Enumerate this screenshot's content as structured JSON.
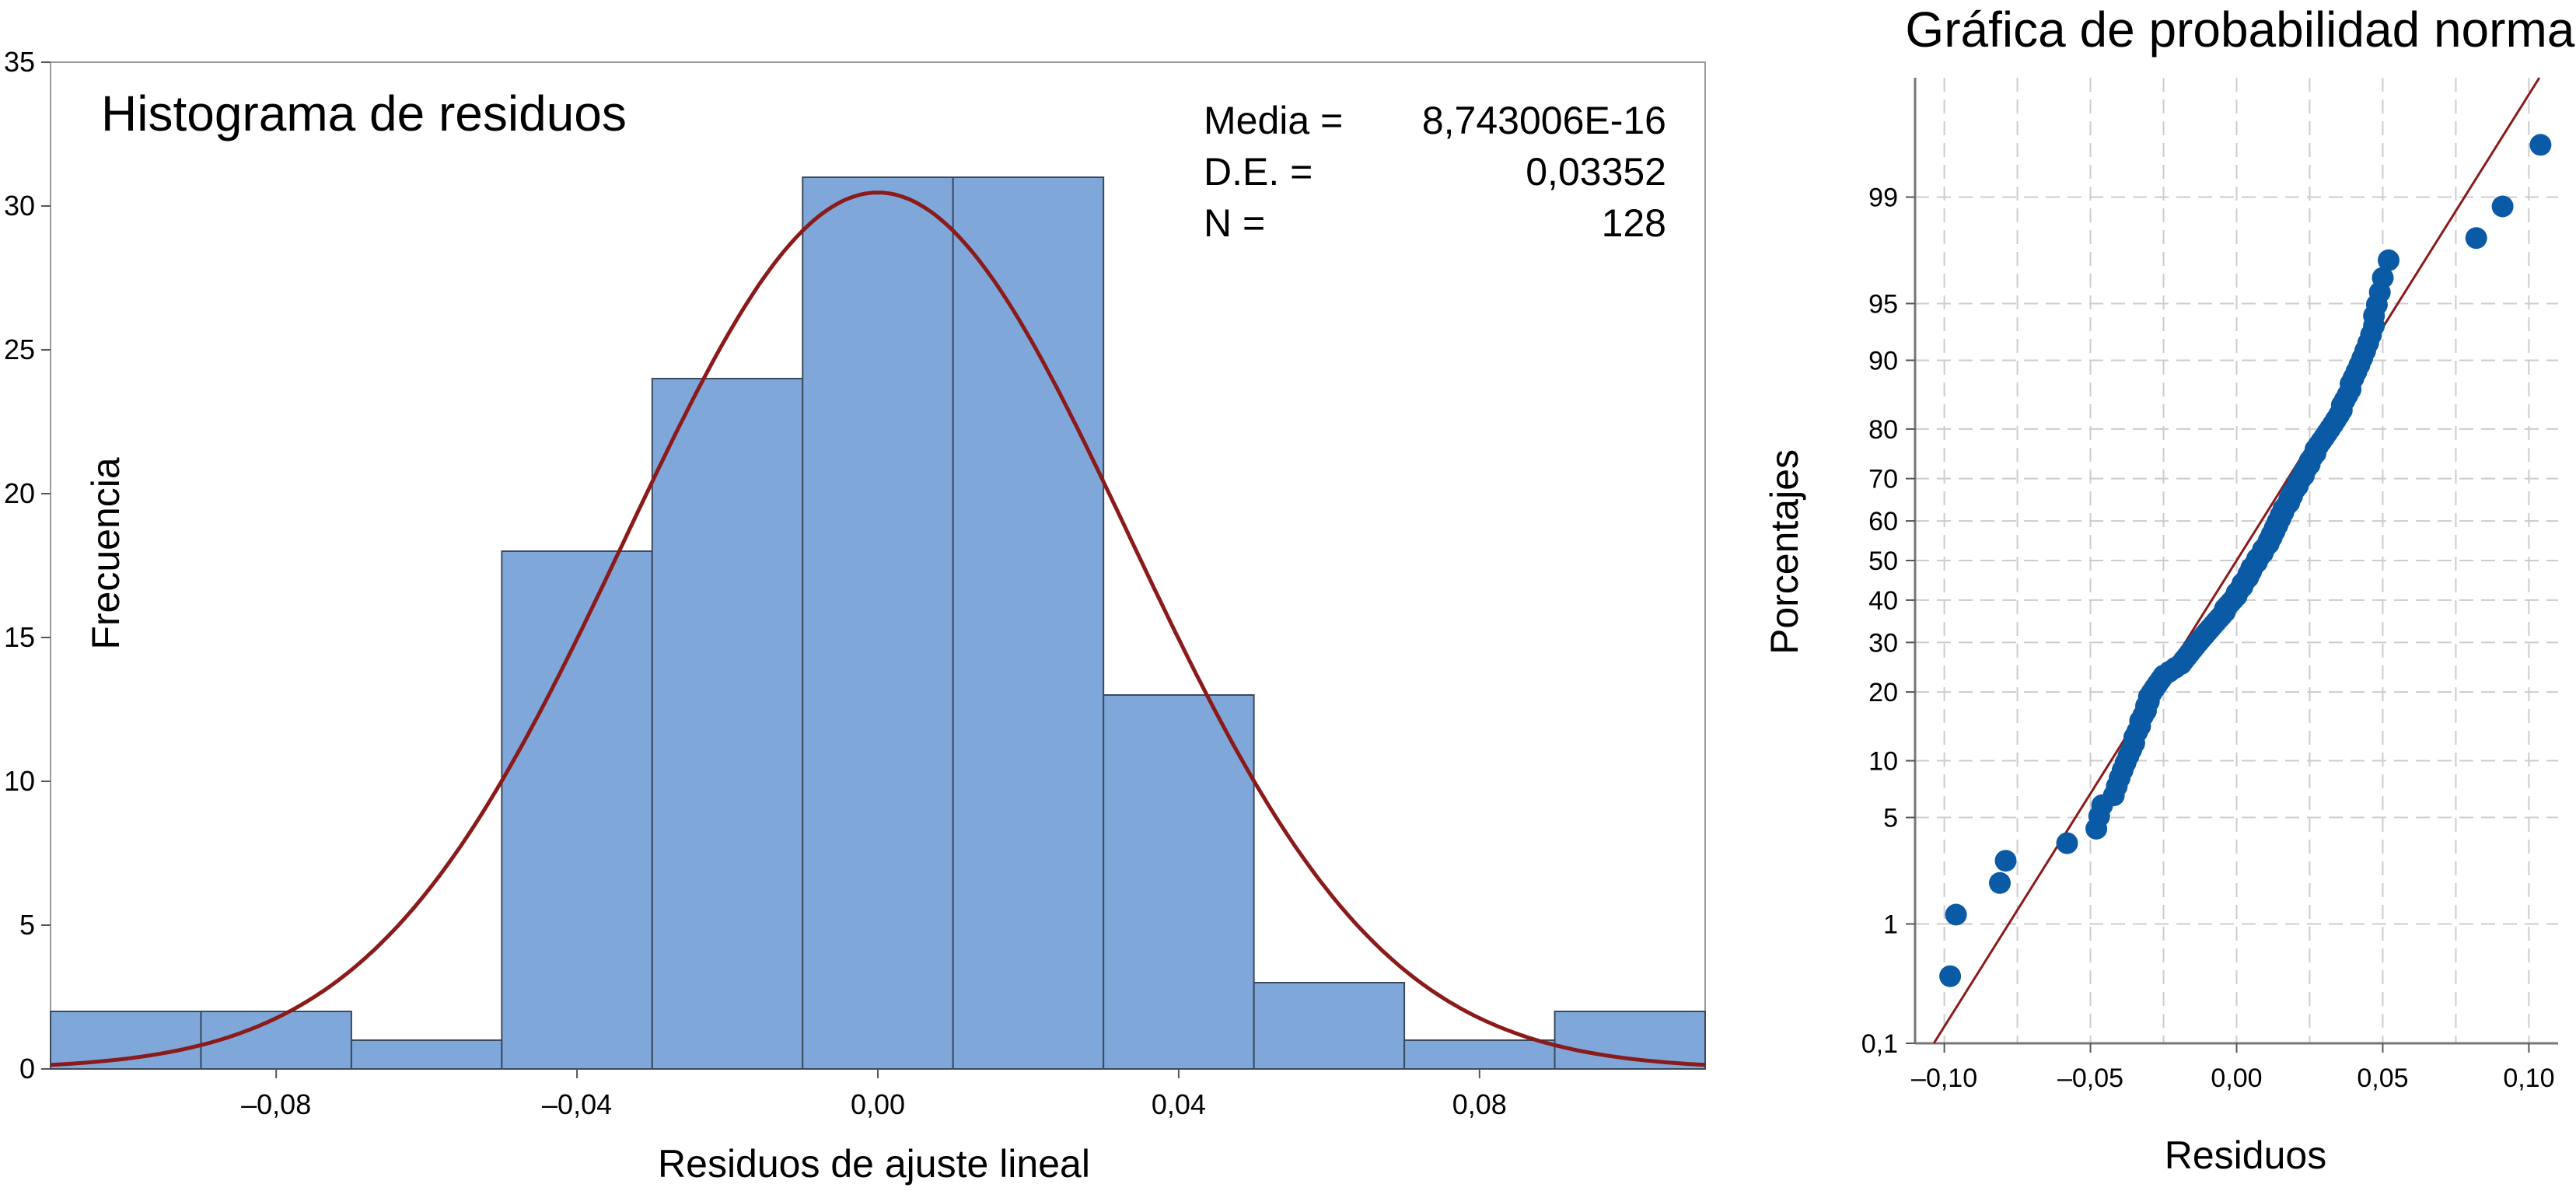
{
  "chart_data": [
    {
      "type": "bar",
      "title": "Histograma de residuos",
      "xlabel": "Residuos de ajuste lineal",
      "ylabel": "Frecuencia",
      "xlim": [
        -0.11,
        0.11
      ],
      "ylim": [
        0,
        35
      ],
      "xticks": [
        -0.08,
        -0.04,
        0.0,
        0.04,
        0.08
      ],
      "xtick_labels": [
        "–0,08",
        "–0,04",
        "0,00",
        "0,04",
        "0,08"
      ],
      "yticks": [
        0,
        5,
        10,
        15,
        20,
        25,
        30,
        35
      ],
      "ytick_labels": [
        "0",
        "5",
        "10",
        "15",
        "20",
        "25",
        "30",
        "35"
      ],
      "bins": [
        {
          "x0": -0.11,
          "x1": -0.09,
          "count": 2
        },
        {
          "x0": -0.09,
          "x1": -0.07,
          "count": 2
        },
        {
          "x0": -0.07,
          "x1": -0.05,
          "count": 1
        },
        {
          "x0": -0.05,
          "x1": -0.03,
          "count": 18
        },
        {
          "x0": -0.03,
          "x1": -0.01,
          "count": 24
        },
        {
          "x0": -0.01,
          "x1": 0.01,
          "count": 31
        },
        {
          "x0": 0.01,
          "x1": 0.03,
          "count": 31
        },
        {
          "x0": 0.03,
          "x1": 0.05,
          "count": 13
        },
        {
          "x0": 0.05,
          "x1": 0.07,
          "count": 3
        },
        {
          "x0": 0.07,
          "x1": 0.09,
          "count": 1
        },
        {
          "x0": 0.09,
          "x1": 0.11,
          "count": 2
        }
      ],
      "normal_curve": {
        "mean": 0.0,
        "sd": 0.03352,
        "n": 128,
        "bin_width": 0.02
      },
      "stats": [
        {
          "label": "Media =",
          "value": "8,743006E-16"
        },
        {
          "label": "D.E. =",
          "value": "0,03352"
        },
        {
          "label": "N =",
          "value": "128"
        }
      ],
      "colors": {
        "bar_fill": "#7fa7d9",
        "bar_stroke": "#3b4a5c",
        "curve": "#8b1a1a"
      },
      "grid": false
    },
    {
      "type": "scatter",
      "title": "Gráfica de probabilidad normal",
      "xlabel": "Residuos",
      "ylabel": "Porcentajes",
      "xlim": [
        -0.11,
        0.11
      ],
      "ylim": [
        0.1,
        99.9
      ],
      "y_scale": "normal-probability",
      "xticks": [
        -0.1,
        -0.05,
        0.0,
        0.05,
        0.1
      ],
      "xtick_labels": [
        "–0,10",
        "–0,05",
        "0,00",
        "0,05",
        "0,10"
      ],
      "yticks": [
        0.1,
        1,
        5,
        10,
        20,
        30,
        40,
        50,
        60,
        70,
        80,
        90,
        95,
        99
      ],
      "ytick_labels": [
        "0,1",
        "1",
        "5",
        "10",
        "20",
        "30",
        "40",
        "50",
        "60",
        "70",
        "80",
        "90",
        "95",
        "99"
      ],
      "grid": true,
      "points": [
        [
          -0.098,
          0.39
        ],
        [
          -0.096,
          1.17
        ],
        [
          -0.081,
          1.95
        ],
        [
          -0.079,
          2.73
        ],
        [
          -0.058,
          3.52
        ],
        [
          -0.048,
          4.3
        ],
        [
          -0.047,
          5.08
        ],
        [
          -0.046,
          5.86
        ],
        [
          -0.042,
          6.64
        ],
        [
          -0.041,
          7.42
        ],
        [
          -0.04,
          8.2
        ],
        [
          -0.039,
          8.98
        ],
        [
          -0.038,
          9.77
        ],
        [
          -0.037,
          10.55
        ],
        [
          -0.036,
          11.33
        ],
        [
          -0.035,
          12.11
        ],
        [
          -0.035,
          12.89
        ],
        [
          -0.034,
          13.67
        ],
        [
          -0.033,
          14.45
        ],
        [
          -0.033,
          15.23
        ],
        [
          -0.032,
          16.02
        ],
        [
          -0.031,
          16.8
        ],
        [
          -0.031,
          17.58
        ],
        [
          -0.03,
          18.36
        ],
        [
          -0.03,
          19.14
        ],
        [
          -0.029,
          19.92
        ],
        [
          -0.028,
          20.7
        ],
        [
          -0.027,
          21.48
        ],
        [
          -0.026,
          22.27
        ],
        [
          -0.025,
          23.05
        ],
        [
          -0.023,
          23.83
        ],
        [
          -0.021,
          24.61
        ],
        [
          -0.019,
          25.39
        ],
        [
          -0.018,
          26.17
        ],
        [
          -0.017,
          26.95
        ],
        [
          -0.016,
          27.73
        ],
        [
          -0.015,
          28.52
        ],
        [
          -0.014,
          29.3
        ],
        [
          -0.013,
          30.08
        ],
        [
          -0.012,
          30.86
        ],
        [
          -0.011,
          31.64
        ],
        [
          -0.01,
          32.42
        ],
        [
          -0.009,
          33.2
        ],
        [
          -0.008,
          33.98
        ],
        [
          -0.007,
          34.77
        ],
        [
          -0.006,
          35.55
        ],
        [
          -0.005,
          36.33
        ],
        [
          -0.004,
          37.11
        ],
        [
          -0.004,
          37.89
        ],
        [
          -0.003,
          38.67
        ],
        [
          -0.002,
          39.45
        ],
        [
          -0.001,
          40.23
        ],
        [
          0.0,
          41.02
        ],
        [
          0.0,
          41.8
        ],
        [
          0.001,
          42.58
        ],
        [
          0.002,
          43.36
        ],
        [
          0.002,
          44.14
        ],
        [
          0.003,
          44.92
        ],
        [
          0.004,
          45.7
        ],
        [
          0.004,
          46.48
        ],
        [
          0.005,
          47.27
        ],
        [
          0.005,
          48.05
        ],
        [
          0.006,
          48.83
        ],
        [
          0.007,
          49.61
        ],
        [
          0.007,
          50.39
        ],
        [
          0.008,
          51.17
        ],
        [
          0.009,
          51.95
        ],
        [
          0.009,
          52.73
        ],
        [
          0.01,
          53.52
        ],
        [
          0.011,
          54.3
        ],
        [
          0.011,
          55.08
        ],
        [
          0.012,
          55.86
        ],
        [
          0.012,
          56.64
        ],
        [
          0.013,
          57.42
        ],
        [
          0.013,
          58.2
        ],
        [
          0.014,
          58.98
        ],
        [
          0.014,
          59.77
        ],
        [
          0.015,
          60.55
        ],
        [
          0.015,
          61.33
        ],
        [
          0.016,
          62.11
        ],
        [
          0.016,
          62.89
        ],
        [
          0.017,
          63.67
        ],
        [
          0.018,
          64.45
        ],
        [
          0.018,
          65.23
        ],
        [
          0.019,
          66.02
        ],
        [
          0.019,
          66.8
        ],
        [
          0.02,
          67.58
        ],
        [
          0.021,
          68.36
        ],
        [
          0.021,
          69.14
        ],
        [
          0.022,
          69.92
        ],
        [
          0.023,
          70.7
        ],
        [
          0.023,
          71.48
        ],
        [
          0.024,
          72.27
        ],
        [
          0.025,
          73.05
        ],
        [
          0.025,
          73.83
        ],
        [
          0.026,
          74.61
        ],
        [
          0.027,
          75.39
        ],
        [
          0.027,
          76.17
        ],
        [
          0.028,
          76.95
        ],
        [
          0.029,
          77.73
        ],
        [
          0.03,
          78.52
        ],
        [
          0.031,
          79.3
        ],
        [
          0.032,
          80.08
        ],
        [
          0.033,
          80.86
        ],
        [
          0.034,
          81.64
        ],
        [
          0.035,
          82.42
        ],
        [
          0.036,
          83.2
        ],
        [
          0.036,
          83.98
        ],
        [
          0.037,
          84.77
        ],
        [
          0.038,
          85.55
        ],
        [
          0.039,
          86.33
        ],
        [
          0.039,
          87.11
        ],
        [
          0.04,
          87.89
        ],
        [
          0.041,
          88.67
        ],
        [
          0.042,
          89.45
        ],
        [
          0.043,
          90.23
        ],
        [
          0.044,
          91.02
        ],
        [
          0.045,
          91.8
        ],
        [
          0.046,
          92.58
        ],
        [
          0.047,
          93.36
        ],
        [
          0.047,
          94.14
        ],
        [
          0.048,
          94.92
        ],
        [
          0.049,
          95.7
        ],
        [
          0.05,
          96.48
        ],
        [
          0.052,
          97.27
        ],
        [
          0.082,
          98.05
        ],
        [
          0.091,
          98.83
        ],
        [
          0.104,
          99.61
        ]
      ],
      "reference_line": {
        "mean": 0.0,
        "sd": 0.03352
      },
      "colors": {
        "point": "#0a5aa5",
        "line": "#8b1a1a",
        "grid": "#cccccc"
      }
    }
  ]
}
